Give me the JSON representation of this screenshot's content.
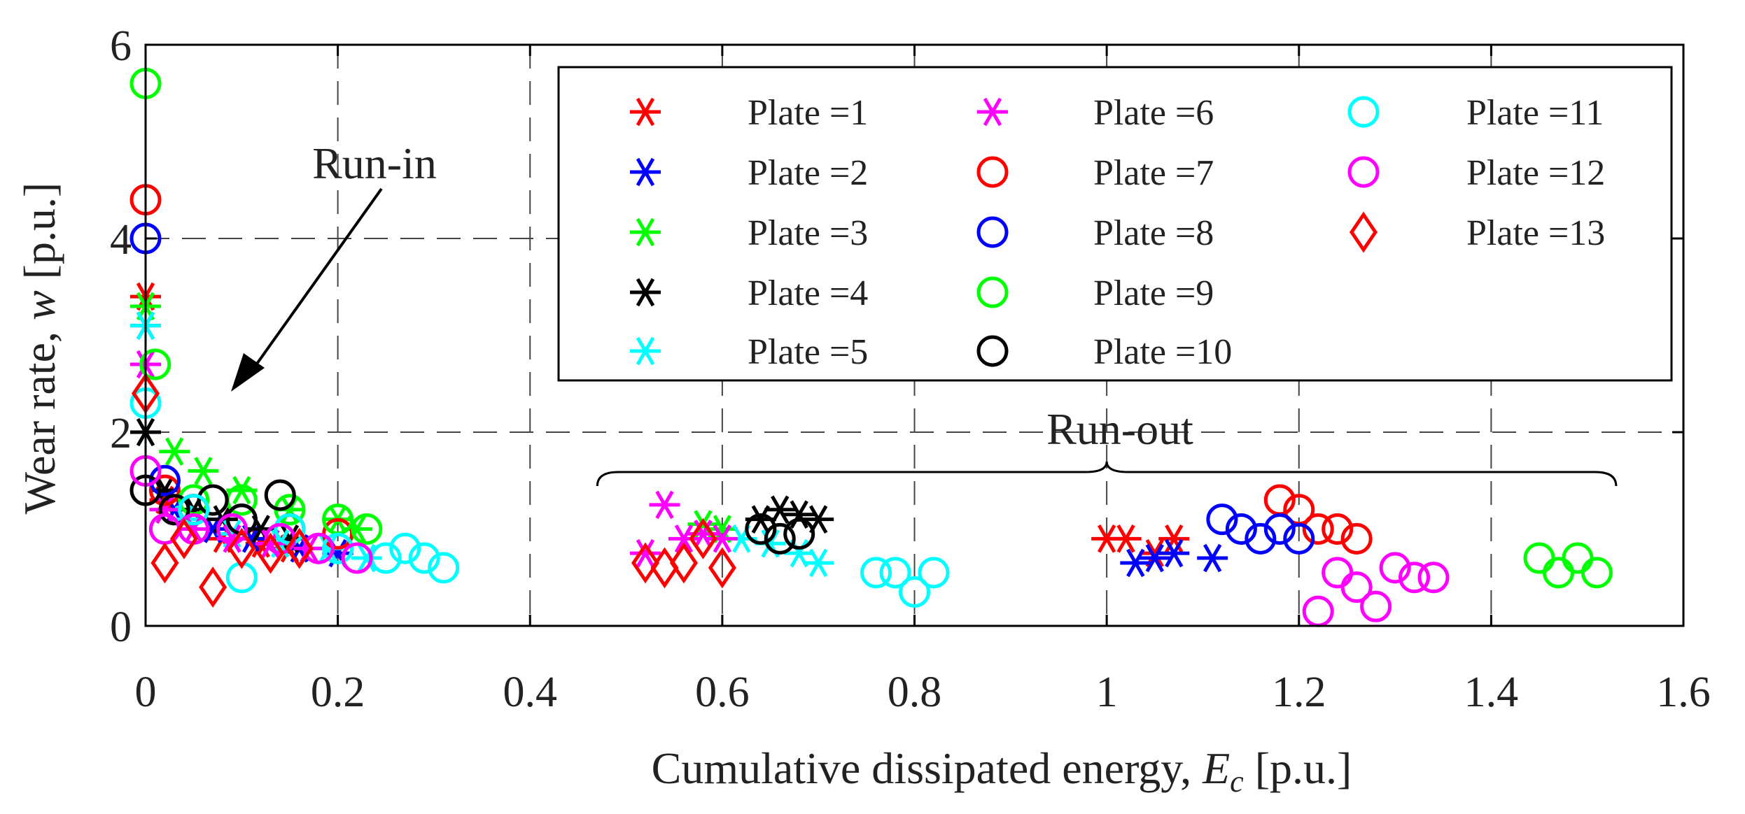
{
  "chart_data": {
    "type": "scatter",
    "xlabel_main": "Cumulative dissipated energy, ",
    "xlabel_symbol": "E",
    "xlabel_sub": "c",
    "xlabel_unit": " [p.u.]",
    "ylabel_main": "Wear rate, ",
    "ylabel_symbol": "w",
    "ylabel_unit": " [p.u.]",
    "xlim": [
      0,
      1.6
    ],
    "ylim": [
      0,
      6
    ],
    "xticks": [
      0,
      0.2,
      0.4,
      0.6,
      0.8,
      1,
      1.2,
      1.4,
      1.6
    ],
    "xtick_labels": [
      "0",
      "0.2",
      "0.4",
      "0.6",
      "0.8",
      "1",
      "1.2",
      "1.4",
      "1.6"
    ],
    "yticks": [
      0,
      2,
      4,
      6
    ],
    "ytick_labels": [
      "0",
      "2",
      "4",
      "6"
    ],
    "grid": true,
    "grid_style": "dashed",
    "legend_placement": "top-right",
    "annotations": {
      "run_in": "Run-in",
      "run_out": "Run-out",
      "run_out_range": [
        0.47,
        1.53
      ]
    },
    "series": [
      {
        "name": "Plate =1",
        "marker": "asterisk",
        "color": "#ff0000",
        "x": [
          0,
          0.02,
          0.05,
          0.08,
          0.12,
          0.15,
          1.0,
          1.02,
          1.05,
          1.07
        ],
        "y": [
          3.4,
          1.3,
          1.0,
          0.9,
          0.85,
          0.8,
          0.9,
          0.9,
          0.75,
          0.9
        ]
      },
      {
        "name": "Plate =2",
        "marker": "asterisk",
        "color": "#0000ff",
        "x": [
          0,
          0.03,
          0.07,
          0.11,
          0.16,
          0.2,
          1.03,
          1.05,
          1.07,
          1.11
        ],
        "y": [
          3.1,
          1.2,
          1.0,
          0.9,
          0.8,
          0.75,
          0.65,
          0.7,
          0.75,
          0.7
        ]
      },
      {
        "name": "Plate =3",
        "marker": "asterisk",
        "color": "#00ff00",
        "x": [
          0,
          0.03,
          0.06,
          0.1,
          0.15,
          0.2,
          0.22,
          0.58,
          0.6
        ],
        "y": [
          3.3,
          1.8,
          1.6,
          1.4,
          1.2,
          1.1,
          1.0,
          1.05,
          1.0
        ]
      },
      {
        "name": "Plate =4",
        "marker": "asterisk",
        "color": "#000000",
        "x": [
          0,
          0.02,
          0.05,
          0.08,
          0.12,
          0.15,
          0.64,
          0.66,
          0.68,
          0.7
        ],
        "y": [
          2.0,
          1.4,
          1.2,
          1.1,
          1.0,
          0.9,
          1.1,
          1.2,
          1.15,
          1.1
        ]
      },
      {
        "name": "Plate =5",
        "marker": "asterisk",
        "color": "#00ffff",
        "x": [
          0,
          0.04,
          0.09,
          0.14,
          0.19,
          0.23,
          0.62,
          0.65,
          0.68,
          0.7
        ],
        "y": [
          3.1,
          1.1,
          0.95,
          0.85,
          0.8,
          0.7,
          0.9,
          0.85,
          0.75,
          0.65
        ]
      },
      {
        "name": "Plate =6",
        "marker": "asterisk",
        "color": "#ff00ff",
        "x": [
          0,
          0.02,
          0.05,
          0.09,
          0.13,
          0.17,
          0.52,
          0.54,
          0.56,
          0.58,
          0.6
        ],
        "y": [
          2.7,
          1.2,
          1.0,
          0.9,
          0.85,
          0.8,
          0.75,
          1.25,
          0.9,
          0.95,
          0.9
        ]
      },
      {
        "name": "Plate =7",
        "marker": "circle",
        "color": "#ff0000",
        "x": [
          0,
          0.02,
          0.05,
          0.1,
          0.15,
          0.2,
          1.18,
          1.2,
          1.22,
          1.24,
          1.26
        ],
        "y": [
          4.4,
          1.4,
          1.2,
          1.1,
          1.0,
          0.95,
          1.3,
          1.2,
          1.0,
          1.0,
          0.9
        ]
      },
      {
        "name": "Plate =8",
        "marker": "circle",
        "color": "#0000ff",
        "x": [
          0,
          0.02,
          0.05,
          0.1,
          0.15,
          1.12,
          1.14,
          1.16,
          1.18,
          1.2
        ],
        "y": [
          4.0,
          1.5,
          1.2,
          1.1,
          1.0,
          1.1,
          1.0,
          0.9,
          1.0,
          0.9
        ]
      },
      {
        "name": "Plate =9",
        "marker": "circle",
        "color": "#00ff00",
        "x": [
          0,
          0.01,
          0.05,
          0.1,
          0.15,
          0.2,
          0.23,
          1.45,
          1.47,
          1.49,
          1.51
        ],
        "y": [
          5.6,
          2.7,
          1.3,
          1.3,
          1.2,
          1.1,
          1.0,
          0.7,
          0.55,
          0.7,
          0.55
        ]
      },
      {
        "name": "Plate =10",
        "marker": "circle",
        "color": "#000000",
        "x": [
          0,
          0.03,
          0.07,
          0.1,
          0.14,
          0.64,
          0.66,
          0.68
        ],
        "y": [
          1.4,
          1.2,
          1.3,
          1.1,
          1.35,
          1.0,
          0.9,
          0.95
        ]
      },
      {
        "name": "Plate =11",
        "marker": "circle",
        "color": "#00ffff",
        "x": [
          0,
          0.05,
          0.1,
          0.15,
          0.2,
          0.25,
          0.27,
          0.29,
          0.31,
          0.76,
          0.78,
          0.8,
          0.82
        ],
        "y": [
          2.3,
          1.2,
          0.5,
          1.0,
          0.8,
          0.7,
          0.8,
          0.7,
          0.6,
          0.55,
          0.55,
          0.35,
          0.55
        ]
      },
      {
        "name": "Plate =12",
        "marker": "circle",
        "color": "#ff00ff",
        "x": [
          0,
          0.02,
          0.05,
          0.09,
          0.14,
          0.18,
          0.22,
          1.22,
          1.24,
          1.26,
          1.28,
          1.3,
          1.32,
          1.34
        ],
        "y": [
          1.6,
          1.0,
          1.0,
          1.0,
          0.9,
          0.8,
          0.7,
          0.15,
          0.55,
          0.4,
          0.2,
          0.6,
          0.5,
          0.5
        ]
      },
      {
        "name": "Plate =13",
        "marker": "diamond",
        "color": "#ff0000",
        "x": [
          0,
          0.02,
          0.04,
          0.07,
          0.1,
          0.13,
          0.16,
          0.52,
          0.54,
          0.56,
          0.58,
          0.6
        ],
        "y": [
          2.4,
          0.65,
          0.9,
          0.4,
          0.8,
          0.75,
          0.8,
          0.65,
          0.6,
          0.65,
          0.9,
          0.6
        ]
      }
    ]
  }
}
